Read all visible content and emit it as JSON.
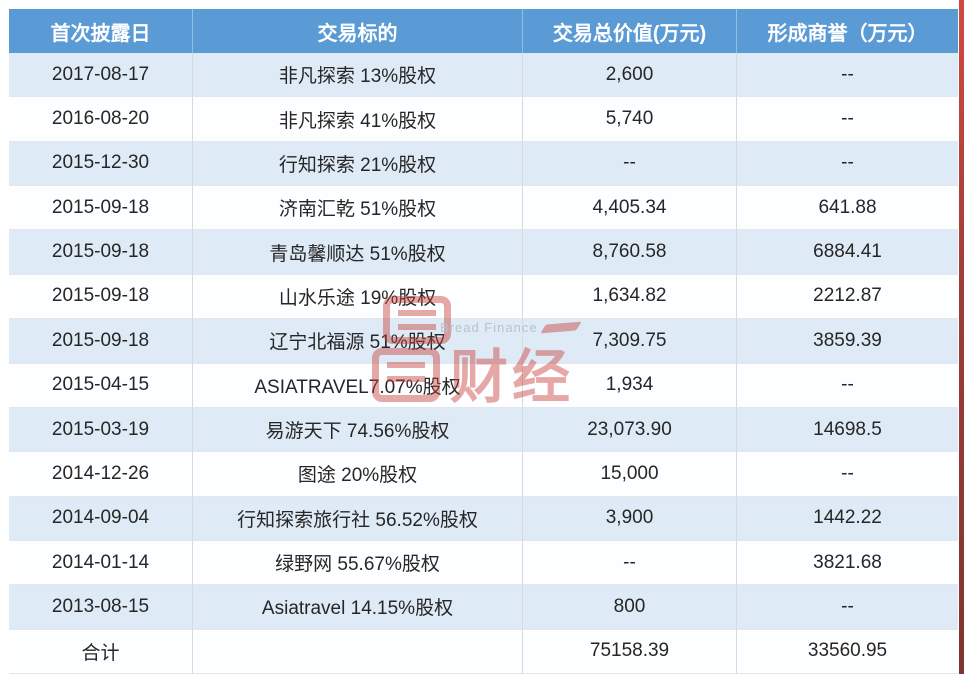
{
  "chart_data": {
    "type": "table",
    "columns": [
      "首次披露日",
      "交易标的",
      "交易总价值(万元)",
      "形成商誉（万元）"
    ],
    "rows": [
      [
        "2017-08-17",
        "非凡探索 13%股权",
        "2,600",
        "--"
      ],
      [
        "2016-08-20",
        "非凡探索 41%股权",
        "5,740",
        "--"
      ],
      [
        "2015-12-30",
        "行知探索 21%股权",
        "--",
        "--"
      ],
      [
        "2015-09-18",
        "济南汇乾 51%股权",
        "4,405.34",
        "641.88"
      ],
      [
        "2015-09-18",
        "青岛馨顺达 51%股权",
        "8,760.58",
        "6884.41"
      ],
      [
        "2015-09-18",
        "山水乐途 19%股权",
        "1,634.82",
        "2212.87"
      ],
      [
        "2015-09-18",
        "辽宁北福源 51%股权",
        "7,309.75",
        "3859.39"
      ],
      [
        "2015-04-15",
        "ASIATRAVEL7.07%股权",
        "1,934",
        "--"
      ],
      [
        "2015-03-19",
        "易游天下 74.56%股权",
        "23,073.90",
        "14698.5"
      ],
      [
        "2014-12-26",
        "图途 20%股权",
        "15,000",
        "--"
      ],
      [
        "2014-09-04",
        "行知探索旅行社 56.52%股权",
        "3,900",
        "1442.22"
      ],
      [
        "2014-01-14",
        "绿野网 55.67%股权",
        "--",
        "3821.68"
      ],
      [
        "2013-08-15",
        "Asiatravel 14.15%股权",
        "800",
        "--"
      ],
      [
        "合计",
        "",
        "75158.39",
        "33560.95"
      ]
    ],
    "title": "",
    "legend": null,
    "grid": true
  },
  "watermark": {
    "brand_cn": "财经",
    "brand_en": "Bread Finance"
  },
  "colors": {
    "header_bg": "#5b9bd5",
    "header_text": "#ffffff",
    "row_alt_bg": "#deebf6",
    "row_bg": "#fdfeff",
    "body_text": "#262626",
    "gridline": "#d9d9d9",
    "edge_strip_red": "#9c3d38",
    "watermark_red": "#c9413c"
  }
}
